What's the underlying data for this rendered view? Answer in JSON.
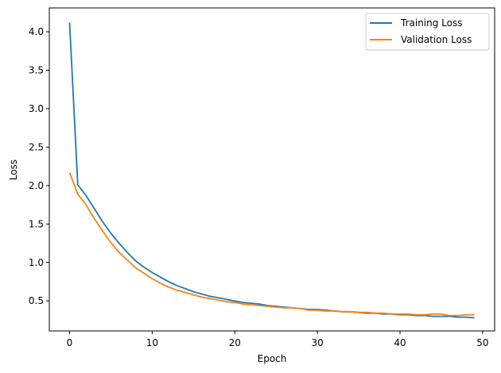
{
  "chart_data": {
    "type": "line",
    "title": "",
    "xlabel": "Epoch",
    "ylabel": "Loss",
    "xlim": [
      -2.45,
      51.45
    ],
    "ylim": [
      0.11,
      4.31
    ],
    "xticks": [
      0,
      10,
      20,
      30,
      40,
      50
    ],
    "xtick_labels": [
      "0",
      "10",
      "20",
      "30",
      "40",
      "50"
    ],
    "yticks": [
      0.5,
      1.0,
      1.5,
      2.0,
      2.5,
      3.0,
      3.5,
      4.0
    ],
    "ytick_labels": [
      "0.5",
      "1.0",
      "1.5",
      "2.0",
      "2.5",
      "3.0",
      "3.5",
      "4.0"
    ],
    "grid": false,
    "legend_position": "upper right",
    "x": [
      0,
      1,
      2,
      3,
      4,
      5,
      6,
      7,
      8,
      9,
      10,
      11,
      12,
      13,
      14,
      15,
      16,
      17,
      18,
      19,
      20,
      21,
      22,
      23,
      24,
      25,
      26,
      27,
      28,
      29,
      30,
      31,
      32,
      33,
      34,
      35,
      36,
      37,
      38,
      39,
      40,
      41,
      42,
      43,
      44,
      45,
      46,
      47,
      48,
      49
    ],
    "series": [
      {
        "name": "Training Loss",
        "color": "#1f77b4",
        "values": [
          4.12,
          2.01,
          1.87,
          1.7,
          1.53,
          1.38,
          1.25,
          1.13,
          1.02,
          0.94,
          0.87,
          0.81,
          0.75,
          0.7,
          0.66,
          0.62,
          0.59,
          0.56,
          0.54,
          0.52,
          0.5,
          0.48,
          0.47,
          0.46,
          0.44,
          0.43,
          0.42,
          0.41,
          0.4,
          0.39,
          0.39,
          0.38,
          0.37,
          0.36,
          0.36,
          0.35,
          0.34,
          0.34,
          0.33,
          0.33,
          0.32,
          0.32,
          0.31,
          0.31,
          0.3,
          0.3,
          0.3,
          0.29,
          0.29,
          0.28
        ]
      },
      {
        "name": "Validation Loss",
        "color": "#ff7f0e",
        "values": [
          2.17,
          1.89,
          1.75,
          1.57,
          1.41,
          1.26,
          1.13,
          1.03,
          0.93,
          0.86,
          0.79,
          0.73,
          0.68,
          0.64,
          0.61,
          0.58,
          0.55,
          0.53,
          0.51,
          0.49,
          0.48,
          0.46,
          0.45,
          0.44,
          0.43,
          0.42,
          0.41,
          0.41,
          0.4,
          0.38,
          0.38,
          0.37,
          0.37,
          0.36,
          0.36,
          0.35,
          0.35,
          0.34,
          0.34,
          0.33,
          0.33,
          0.33,
          0.32,
          0.32,
          0.33,
          0.33,
          0.31,
          0.31,
          0.32,
          0.32
        ]
      }
    ]
  },
  "legend": {
    "items": [
      {
        "label": "Training Loss",
        "color": "#1f77b4"
      },
      {
        "label": "Validation Loss",
        "color": "#ff7f0e"
      }
    ]
  }
}
